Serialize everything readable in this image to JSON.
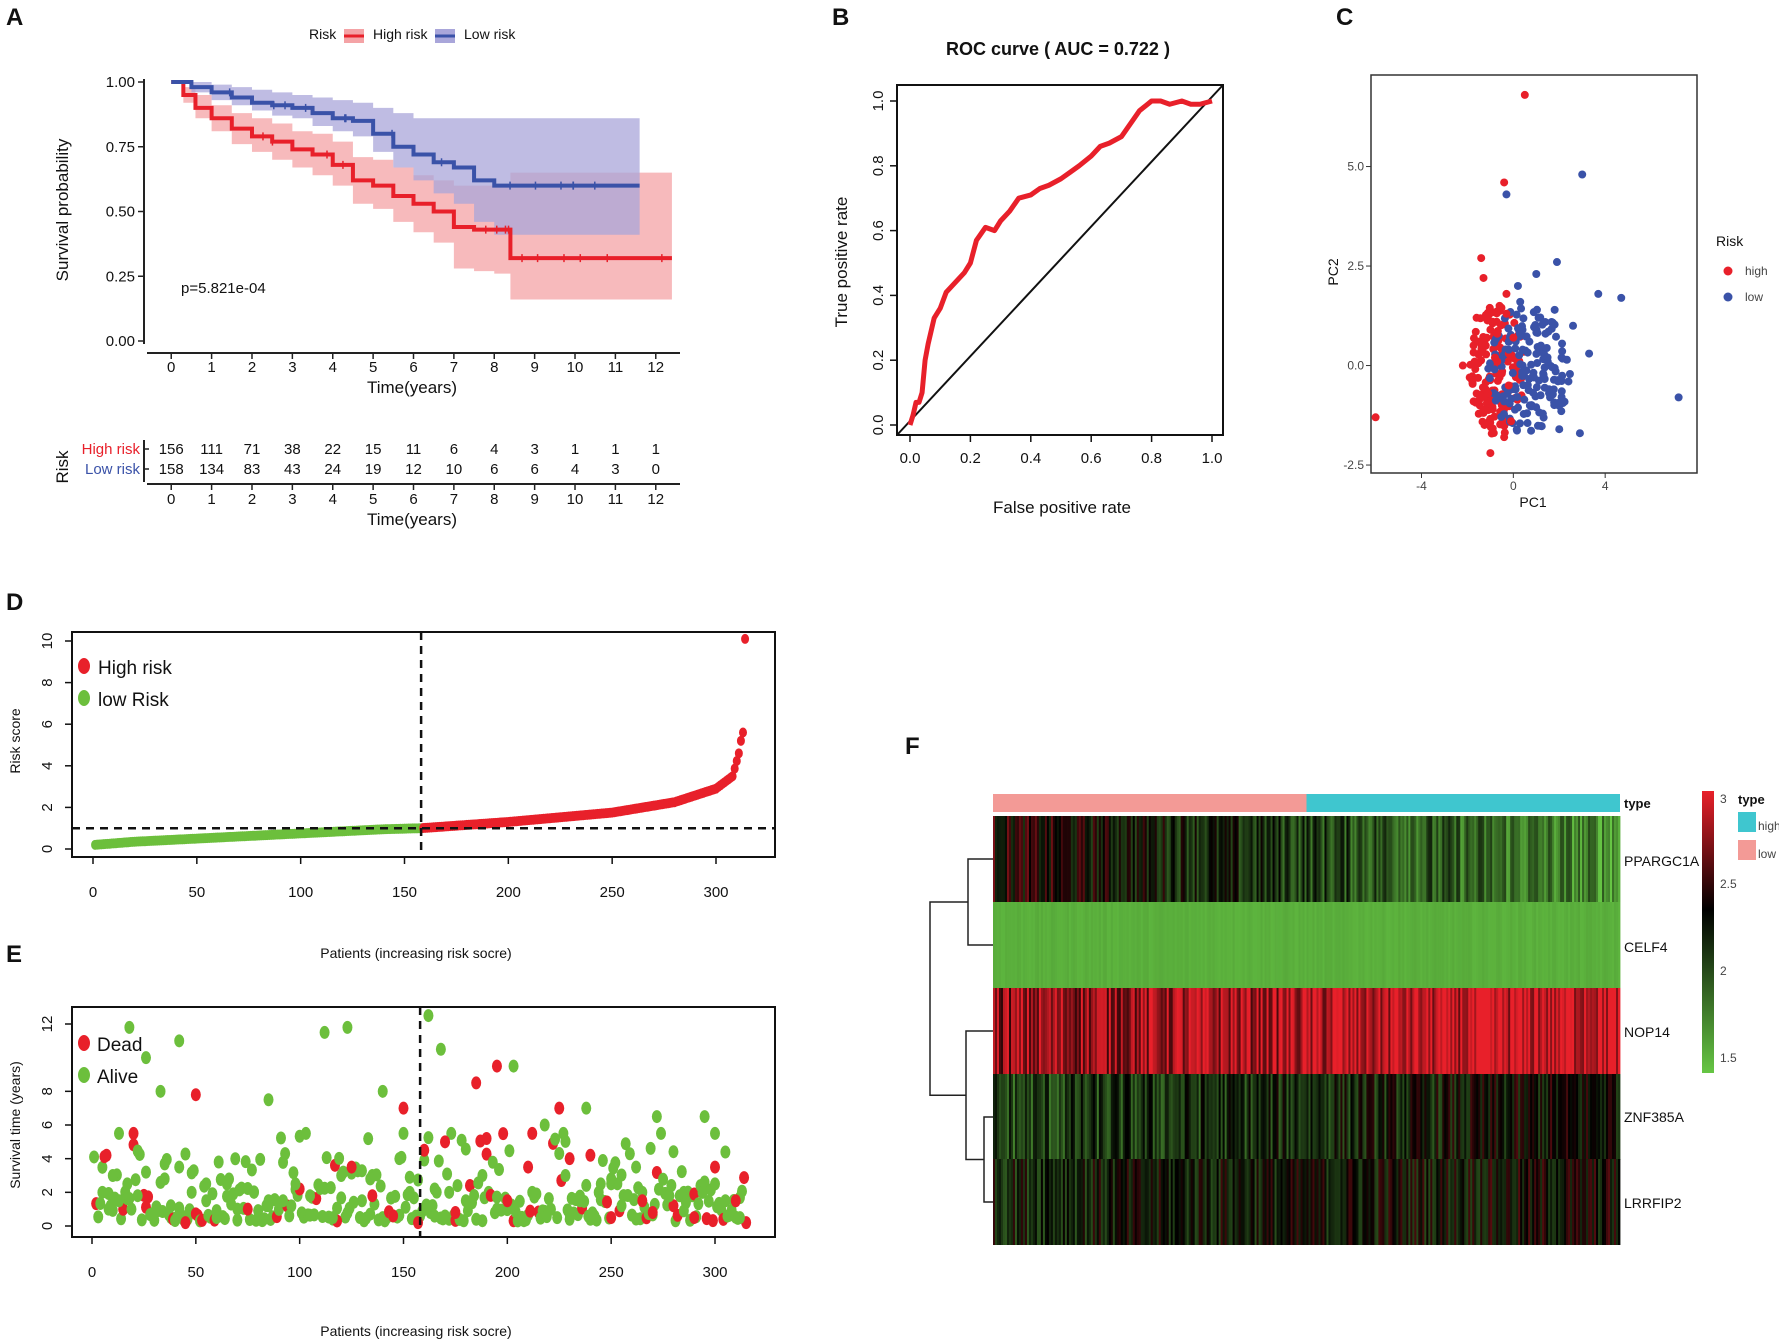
{
  "panels": {
    "A": {
      "label": "A",
      "chart_data": {
        "type": "line",
        "subtype": "kaplan-meier",
        "legend_title": "Risk",
        "legend": [
          "High risk",
          "Low risk"
        ],
        "colors": {
          "high": "#e8202a",
          "low": "#3a52a8",
          "high_band": "#f4a3a6",
          "low_band": "#a9a6da"
        },
        "ylabel": "Survival probability",
        "xlabel": "Time(years)",
        "xlim": [
          -0.6,
          12.6
        ],
        "ylim": [
          0,
          1
        ],
        "yticks": [
          "0.00",
          "0.25",
          "0.50",
          "0.75",
          "1.00"
        ],
        "xticks": [
          "0",
          "1",
          "2",
          "3",
          "4",
          "5",
          "6",
          "7",
          "8",
          "9",
          "10",
          "11",
          "12"
        ],
        "pvalue": "p=5.821e-04",
        "series": [
          {
            "name": "High risk",
            "x": [
              0,
              0.3,
              0.6,
              1,
              1.5,
              2,
              2.5,
              3,
              3.5,
              4,
              4.5,
              5,
              5.5,
              6,
              6.5,
              7,
              7.5,
              8,
              8.4,
              9,
              10,
              11,
              12.4
            ],
            "values": [
              1,
              0.95,
              0.9,
              0.86,
              0.82,
              0.79,
              0.77,
              0.74,
              0.72,
              0.68,
              0.62,
              0.6,
              0.56,
              0.53,
              0.5,
              0.44,
              0.43,
              0.43,
              0.32,
              0.32,
              0.32,
              0.32,
              0.32
            ],
            "lower": [
              1,
              0.92,
              0.86,
              0.81,
              0.76,
              0.73,
              0.7,
              0.67,
              0.64,
              0.6,
              0.53,
              0.51,
              0.46,
              0.42,
              0.38,
              0.28,
              0.27,
              0.26,
              0.16,
              0.16,
              0.16,
              0.16,
              0.16
            ],
            "upper": [
              1,
              0.98,
              0.95,
              0.91,
              0.88,
              0.86,
              0.84,
              0.81,
              0.8,
              0.77,
              0.71,
              0.7,
              0.67,
              0.64,
              0.62,
              0.6,
              0.6,
              0.6,
              0.65,
              0.65,
              0.65,
              0.65,
              0.65
            ]
          },
          {
            "name": "Low risk",
            "x": [
              0,
              0.5,
              1,
              1.5,
              2,
              2.5,
              3,
              3.5,
              4,
              4.5,
              5,
              5.5,
              6,
              6.5,
              7,
              7.5,
              8,
              9,
              10,
              11,
              11.6
            ],
            "values": [
              1,
              0.98,
              0.96,
              0.94,
              0.92,
              0.91,
              0.9,
              0.88,
              0.86,
              0.85,
              0.8,
              0.75,
              0.72,
              0.69,
              0.67,
              0.62,
              0.6,
              0.6,
              0.6,
              0.6,
              0.6
            ],
            "lower": [
              1,
              0.96,
              0.93,
              0.91,
              0.89,
              0.87,
              0.86,
              0.83,
              0.81,
              0.79,
              0.73,
              0.67,
              0.62,
              0.57,
              0.53,
              0.46,
              0.41,
              0.41,
              0.41,
              0.41,
              0.41
            ],
            "upper": [
              1,
              1,
              0.99,
              0.98,
              0.97,
              0.96,
              0.95,
              0.94,
              0.93,
              0.92,
              0.9,
              0.88,
              0.86,
              0.86,
              0.86,
              0.86,
              0.86,
              0.86,
              0.86,
              0.86,
              0.86
            ]
          }
        ],
        "risk_table": {
          "title": "Risk",
          "xlabel": "Time(years)",
          "rows": [
            {
              "name": "High risk",
              "values": [
                "156",
                "111",
                "71",
                "38",
                "22",
                "15",
                "11",
                "6",
                "4",
                "3",
                "1",
                "1",
                "1"
              ]
            },
            {
              "name": "Low risk",
              "values": [
                "158",
                "134",
                "83",
                "43",
                "24",
                "19",
                "12",
                "10",
                "6",
                "6",
                "4",
                "3",
                "0"
              ]
            }
          ]
        }
      }
    },
    "B": {
      "label": "B",
      "chart_data": {
        "type": "line",
        "subtype": "roc",
        "title": "ROC curve ( AUC =  0.722 )",
        "xlabel": "False positive rate",
        "ylabel": "True positive rate",
        "xlim": [
          0,
          1
        ],
        "ylim": [
          0,
          1
        ],
        "xticks": [
          "0.0",
          "0.2",
          "0.4",
          "0.6",
          "0.8",
          "1.0"
        ],
        "yticks": [
          "0.0",
          "0.2",
          "0.4",
          "0.6",
          "0.8",
          "1.0"
        ],
        "color": "#e8202a",
        "x": [
          0,
          0.01,
          0.02,
          0.03,
          0.04,
          0.05,
          0.06,
          0.08,
          0.1,
          0.12,
          0.15,
          0.18,
          0.2,
          0.22,
          0.25,
          0.28,
          0.3,
          0.33,
          0.36,
          0.4,
          0.43,
          0.46,
          0.5,
          0.53,
          0.56,
          0.6,
          0.63,
          0.66,
          0.7,
          0.73,
          0.76,
          0.8,
          0.83,
          0.86,
          0.9,
          0.93,
          0.96,
          1
        ],
        "y": [
          0,
          0.03,
          0.07,
          0.07,
          0.1,
          0.2,
          0.25,
          0.33,
          0.36,
          0.41,
          0.44,
          0.47,
          0.5,
          0.57,
          0.61,
          0.6,
          0.63,
          0.66,
          0.7,
          0.71,
          0.73,
          0.74,
          0.76,
          0.78,
          0.8,
          0.83,
          0.86,
          0.87,
          0.89,
          0.93,
          0.97,
          1,
          1,
          0.99,
          1,
          0.99,
          0.99,
          1
        ]
      }
    },
    "C": {
      "label": "C",
      "chart_data": {
        "type": "scatter",
        "subtype": "pca",
        "xlabel": "PC1",
        "ylabel": "PC2",
        "xlim": [
          -6.2,
          8
        ],
        "ylim": [
          -2.7,
          7.3
        ],
        "xticks": [
          "-4",
          "0",
          "4"
        ],
        "yticks": [
          "-2.5",
          "0.0",
          "2.5",
          "5.0"
        ],
        "legend_title": "Risk",
        "legend": [
          "high",
          "low"
        ],
        "colors": {
          "high": "#e8202a",
          "low": "#3a52a8"
        },
        "series": [
          {
            "name": "high",
            "x": [
              0.5,
              -0.4,
              -6,
              -1,
              -2.2,
              -1.4,
              -0.3,
              -0.9,
              -1.2,
              -0.6,
              -0.1,
              -1.6,
              -0.7,
              -1.9,
              -0.5,
              -0.2,
              -1.1,
              -0.8,
              -1.3,
              -0.4,
              -0.6,
              -1.0,
              -0.2,
              -1.5,
              -0.3,
              -0.9,
              -0.7,
              -1.2,
              0.0,
              -0.5
            ],
            "y": [
              6.8,
              4.6,
              -1.3,
              -2.2,
              0,
              2.7,
              1.8,
              1.1,
              0.5,
              -0.3,
              -1.4,
              1.2,
              0.8,
              -0.3,
              -1.0,
              0.3,
              -0.7,
              0.2,
              2.2,
              -1.8,
              1.5,
              0.9,
              -0.5,
              0.6,
              1.3,
              -1.1,
              0.1,
              -0.6,
              0.7,
              -0.2
            ]
          },
          {
            "name": "low",
            "x": [
              3,
              -0.3,
              7.2,
              4.7,
              3.7,
              1.9,
              1.0,
              2.6,
              1.4,
              0.3,
              -0.2,
              0.9,
              1.6,
              2.1,
              0.6,
              1.2,
              0.4,
              2.9,
              1.8,
              0.1,
              3.3,
              0.8,
              1.5,
              2.4,
              0.2,
              1.1,
              -0.4,
              2.0,
              0.7,
              1.3
            ],
            "y": [
              4.8,
              4.3,
              -0.8,
              1.7,
              1.8,
              2.6,
              2.3,
              1.0,
              0.8,
              1.6,
              0.4,
              -0.3,
              -0.8,
              0.2,
              -1.2,
              0.5,
              0.9,
              -1.7,
              1.4,
              -0.6,
              0.3,
              -1.0,
              0.1,
              -0.4,
              2.0,
              1.2,
              -0.9,
              -1.6,
              0.6,
              -0.2
            ]
          }
        ]
      }
    },
    "D": {
      "label": "D",
      "chart_data": {
        "type": "scatter",
        "subtype": "risk-score-curve",
        "ylabel": "Risk score",
        "xlabel": "Patients (increasing risk socre)",
        "xlim": [
          0,
          330
        ],
        "ylim": [
          0,
          10
        ],
        "xticks": [
          "0",
          "50",
          "100",
          "150",
          "200",
          "250",
          "300"
        ],
        "yticks": [
          "0",
          "2",
          "4",
          "6",
          "8",
          "10"
        ],
        "cutoff_index": 158,
        "cutoff_score": 1.0,
        "n_low": 158,
        "n_high": 156,
        "legend": [
          "High risk",
          "low Risk"
        ],
        "colors": {
          "high": "#e8202a",
          "low": "#6cbf3c"
        },
        "curve_points": {
          "x": [
            1,
            20,
            60,
            100,
            140,
            158,
            200,
            250,
            280,
            300,
            308,
            311,
            312,
            313,
            314
          ],
          "y": [
            0.2,
            0.35,
            0.55,
            0.75,
            0.95,
            1.0,
            1.3,
            1.75,
            2.25,
            2.9,
            3.5,
            4.6,
            5.2,
            5.6,
            10.1
          ]
        }
      }
    },
    "E": {
      "label": "E",
      "chart_data": {
        "type": "scatter",
        "subtype": "survival-status",
        "ylabel": "Survival time (years)",
        "xlabel": "Patients (increasing risk socre)",
        "xlim": [
          0,
          330
        ],
        "ylim": [
          0,
          13
        ],
        "xticks": [
          "0",
          "50",
          "100",
          "150",
          "200",
          "250",
          "300"
        ],
        "yticks": [
          "0",
          "2",
          "4",
          "6",
          "8",
          "12"
        ],
        "cutoff_index": 158,
        "legend": [
          "Dead",
          "Alive"
        ],
        "colors": {
          "dead": "#e8202a",
          "alive": "#6cbf3c"
        },
        "series": [
          {
            "name": "Dead",
            "x": [
              20,
              50,
              75,
              100,
              118,
              125,
              150,
              157,
              160,
              175,
              185,
              190,
              195,
              200,
              210,
              225,
              240,
              250,
              265,
              280,
              290,
              300,
              310,
              315,
              45,
              170,
              230,
              270,
              135,
              145
            ],
            "y": [
              5.5,
              7.8,
              1,
              2.2,
              0.3,
              3.5,
              7,
              0.2,
              4.5,
              0.8,
              8.5,
              5.2,
              9.5,
              1.5,
              3.5,
              7,
              4.2,
              0.5,
              1.5,
              1.2,
              0.5,
              3.5,
              1.5,
              0.2,
              0.2,
              5,
              4,
              0.8,
              1.8,
              0.6
            ]
          },
          {
            "name": "Alive",
            "x": [
              5,
              8,
              10,
              13,
              17,
              22,
              26,
              30,
              35,
              38,
              42,
              48,
              55,
              60,
              65,
              70,
              78,
              85,
              92,
              98,
              105,
              112,
              116,
              120,
              123,
              130,
              140,
              148,
              153,
              162,
              168,
              172,
              180,
              188,
              195,
              203,
              212,
              218,
              228,
              235,
              238,
              245,
              255,
              262,
              272,
              278,
              285,
              295,
              300,
              305,
              312,
              18,
              26,
              33,
              42,
              85,
              134,
              165,
              230,
              250
            ],
            "y": [
              2,
              1,
              3,
              1.5,
              2.5,
              1.8,
              3.2,
              0.8,
              2.8,
              1.2,
              3.5,
              2,
              1.5,
              0.5,
              2.5,
              1,
              2,
              7.5,
              1.5,
              2.5,
              1.8,
              11.5,
              0.5,
              3,
              11.8,
              1.5,
              8,
              4,
              2,
              12.5,
              10.5,
              2,
              1.5,
              3,
              1,
              9.5,
              2,
              6,
              3,
              1.5,
              7,
              2.5,
              1.2,
              3.5,
              6.5,
              1.8,
              2,
              6.5,
              2.5,
              1.5,
              0.5,
              11.8,
              10,
              8,
              11,
              1.2,
              2.8,
              2.2,
              0.4,
              2.8
            ]
          }
        ]
      }
    },
    "F": {
      "label": "F",
      "chart_data": {
        "type": "heatmap",
        "rows": [
          "PPARGC1A",
          "CELF4",
          "NOP14",
          "ZNF385A",
          "LRRFIP2"
        ],
        "row_means": [
          2.1,
          1.6,
          2.85,
          2.2,
          2.3
        ],
        "row_trend": [
          -0.35,
          0.0,
          0.1,
          0.15,
          0.05
        ],
        "column_groups": [
          {
            "name": "low",
            "fraction": 0.5
          },
          {
            "name": "high",
            "fraction": 0.5
          }
        ],
        "annotation_label": "type",
        "legend_title": "type",
        "legend_items": [
          "high",
          "low"
        ],
        "annotation_colors": {
          "high": "#3fc6cf",
          "low": "#f39a96"
        },
        "scale": {
          "min": 1.5,
          "max": 3.0,
          "ticks": [
            "3",
            "2.5",
            "2",
            "1.5"
          ]
        },
        "scale_colors": {
          "low": "#66c644",
          "mid": "#000000",
          "high": "#e8202a"
        }
      }
    }
  }
}
